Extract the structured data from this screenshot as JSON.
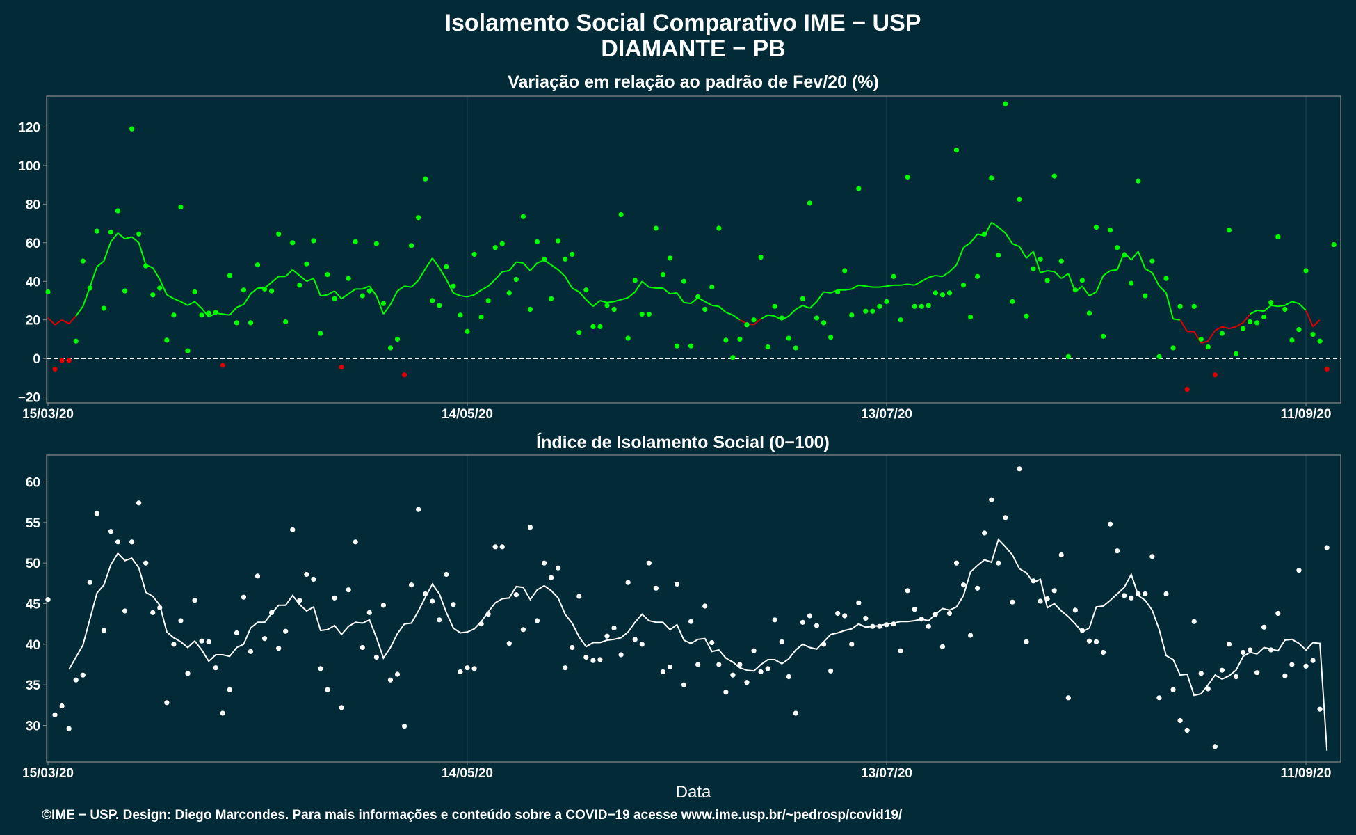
{
  "header": {
    "title_line1": "Isolamento Social Comparativo IME − USP",
    "title_line2": "DIAMANTE − PB"
  },
  "footer": {
    "text": "©IME − USP. Design: Diego Marcondes. Para mais informações e conteúdo sobre a COVID−19 acesse www.ime.usp.br/~pedrosp/covid19/"
  },
  "colors": {
    "background": "#022b37",
    "positive": "#00ff00",
    "negative": "#e00000",
    "index_series": "#ffffff",
    "frame": "#8a8a8a",
    "grid": "#1e4450"
  },
  "chart_data": [
    {
      "type": "scatter",
      "title": "Variação em relação ao padrão de Fev/20 (%)",
      "xlabel": "",
      "ylabel": "",
      "x_start": "2020-03-15",
      "x_tick_labels": [
        "15/03/20",
        "14/05/20",
        "13/07/20",
        "11/09/20"
      ],
      "x_tick_dates": [
        "2020-03-15",
        "2020-05-14",
        "2020-07-13",
        "2020-09-11"
      ],
      "y_ticks": [
        -20,
        0,
        20,
        40,
        60,
        80,
        100,
        120
      ],
      "ylim": [
        -23,
        136
      ],
      "reference_line": 0,
      "grid": true,
      "series": [
        {
          "role": "points",
          "values": [
            34.5,
            -5.5,
            -1.0,
            -1.0,
            9.0,
            50.5,
            36.5,
            66.0,
            26.0,
            65.5,
            76.5,
            35.0,
            119.0,
            64.5,
            48.0,
            33.0,
            36.5,
            9.5,
            22.5,
            78.5,
            4.0,
            34.5,
            22.5,
            23.5,
            24.0,
            -3.5,
            43.0,
            18.5,
            35.5,
            18.5,
            48.5,
            36.0,
            35.0,
            64.5,
            19.0,
            60.0,
            38.0,
            49.0,
            61.0,
            13.0,
            43.5,
            31.0,
            -4.5,
            41.5,
            60.5,
            32.5,
            35.0,
            59.5,
            28.5,
            5.5,
            10.0,
            -8.5,
            58.5,
            73.0,
            93.0,
            30.0,
            27.5,
            47.5,
            37.5,
            22.5,
            14.0,
            54.0,
            21.5,
            30.0,
            57.5,
            59.5,
            34.0,
            41.0,
            73.5,
            25.5,
            60.5,
            51.5,
            31.0,
            61.0,
            51.5,
            54.0,
            13.5,
            35.5,
            16.5,
            16.5,
            27.5,
            25.5,
            74.5,
            10.5,
            40.5,
            23.0,
            23.0,
            67.5,
            43.5,
            52.0,
            6.5,
            40.0,
            6.5,
            32.0,
            25.5,
            37.0,
            67.5,
            9.5,
            0.5,
            10.0,
            17.5,
            20.0,
            52.5,
            6.0,
            27.0,
            21.0,
            10.5,
            5.5,
            31.0,
            80.5,
            21.0,
            18.5,
            11.0,
            34.5,
            45.5,
            22.5,
            88.0,
            24.5,
            24.5,
            27.0,
            29.5,
            42.5,
            20.0,
            94.0,
            27.0,
            27.0,
            27.5,
            34.0,
            33.0,
            34.0,
            108.0,
            38.0,
            21.5,
            42.5,
            64.5,
            93.5,
            53.5,
            132.0,
            29.5,
            82.5,
            22.0,
            46.5,
            51.5,
            40.5,
            94.5,
            50.5,
            1.0,
            35.5,
            40.5,
            23.5,
            68.0,
            11.5,
            66.5,
            57.5,
            53.5,
            39.0,
            92.0,
            32.5,
            50.5,
            1.0,
            41.5,
            5.5,
            27.0,
            -16.0,
            27.0,
            10.0,
            6.0,
            -8.5,
            13.0,
            66.5,
            2.5,
            15.5,
            19.0,
            18.5,
            21.5,
            29.0,
            63.0,
            25.5,
            9.5,
            15.0,
            45.5,
            12.5,
            9.0,
            -5.5,
            59.0
          ]
        },
        {
          "role": "moving_average",
          "values": [
            21.0,
            17.5,
            20.0,
            18.0,
            22.0,
            27.0,
            37.0,
            47.5,
            50.5,
            60.5,
            65.0,
            62.0,
            63.0,
            60.0,
            48.5,
            47.0,
            41.0,
            33.0,
            31.0,
            29.5,
            27.5,
            29.5,
            26.0,
            21.5,
            23.5,
            23.0,
            22.5,
            26.5,
            28.0,
            33.5,
            36.5,
            36.5,
            39.5,
            42.5,
            42.5,
            46.0,
            43.0,
            40.0,
            41.5,
            32.5,
            33.0,
            35.0,
            31.0,
            33.5,
            36.0,
            36.0,
            37.5,
            32.5,
            23.0,
            28.0,
            35.0,
            37.5,
            37.0,
            40.5,
            46.5,
            52.0,
            47.0,
            41.0,
            34.0,
            32.5,
            32.0,
            33.0,
            35.5,
            37.5,
            41.0,
            45.0,
            45.5,
            50.0,
            49.5,
            45.5,
            49.5,
            51.0,
            48.5,
            46.0,
            42.5,
            36.5,
            34.5,
            30.5,
            27.0,
            30.0,
            29.0,
            29.5,
            30.5,
            31.5,
            34.5,
            40.0,
            37.0,
            36.5,
            36.5,
            33.5,
            34.0,
            29.0,
            28.5,
            31.5,
            29.5,
            27.5,
            27.0,
            24.0,
            22.5,
            20.0,
            18.0,
            17.5,
            20.5,
            22.5,
            22.0,
            20.0,
            22.0,
            25.5,
            27.5,
            26.0,
            29.5,
            34.5,
            34.0,
            35.5,
            35.5,
            36.0,
            38.0,
            37.5,
            37.0,
            37.0,
            37.5,
            38.0,
            38.0,
            38.5,
            38.0,
            40.0,
            42.0,
            43.0,
            42.5,
            45.0,
            48.5,
            57.5,
            60.0,
            64.5,
            63.5,
            70.5,
            68.0,
            65.0,
            59.5,
            58.0,
            52.0,
            55.5,
            44.5,
            45.5,
            45.0,
            41.5,
            44.0,
            34.5,
            37.5,
            32.5,
            34.5,
            43.0,
            45.5,
            46.0,
            55.0,
            51.0,
            55.5,
            46.5,
            44.5,
            37.5,
            34.0,
            20.5,
            20.0,
            14.0,
            14.0,
            8.0,
            9.0,
            14.5,
            16.5,
            15.5,
            16.5,
            18.5,
            23.0,
            25.0,
            24.5,
            27.5,
            27.0,
            27.5,
            29.5,
            28.5,
            25.0,
            16.5,
            20.0
          ]
        }
      ]
    },
    {
      "type": "scatter",
      "title": "Índice de Isolamento Social (0−100)",
      "xlabel": "Data",
      "ylabel": "",
      "x_start": "2020-03-15",
      "x_tick_labels": [
        "15/03/20",
        "14/05/20",
        "13/07/20",
        "11/09/20"
      ],
      "x_tick_dates": [
        "2020-03-15",
        "2020-05-14",
        "2020-07-13",
        "2020-09-11"
      ],
      "y_ticks": [
        30,
        35,
        40,
        45,
        50,
        55,
        60
      ],
      "ylim": [
        25.5,
        63.3
      ],
      "grid": true,
      "series": [
        {
          "role": "points",
          "values": [
            45.5,
            31.3,
            32.4,
            29.6,
            35.6,
            36.2,
            47.6,
            56.1,
            41.7,
            53.9,
            52.6,
            44.1,
            52.6,
            57.4,
            50.0,
            43.9,
            44.5,
            32.8,
            40.0,
            42.9,
            36.4,
            45.4,
            40.4,
            40.3,
            37.1,
            31.5,
            34.4,
            41.4,
            45.8,
            39.1,
            48.4,
            40.7,
            43.9,
            39.5,
            41.6,
            54.1,
            45.4,
            48.6,
            48.0,
            37.0,
            34.4,
            45.7,
            32.2,
            46.7,
            52.6,
            39.6,
            43.9,
            38.4,
            44.8,
            35.6,
            36.3,
            29.9,
            47.3,
            56.6,
            46.2,
            45.3,
            43.0,
            48.6,
            44.9,
            36.6,
            37.1,
            37.0,
            42.5,
            43.7,
            52.0,
            52.0,
            40.1,
            46.1,
            41.8,
            54.4,
            42.9,
            50.0,
            48.2,
            49.4,
            37.1,
            39.6,
            45.9,
            38.4,
            38.0,
            38.1,
            41.0,
            42.0,
            38.7,
            47.6,
            40.6,
            40.0,
            50.0,
            46.9,
            36.6,
            37.2,
            47.4,
            35.0,
            42.8,
            37.5,
            44.7,
            40.2,
            37.5,
            34.1,
            36.2,
            37.5,
            35.3,
            39.2,
            36.6,
            37.0,
            43.0,
            40.3,
            36.0,
            31.5,
            42.7,
            43.5,
            42.3,
            40.0,
            36.7,
            43.8,
            43.5,
            40.0,
            45.1,
            43.2,
            42.2,
            42.2,
            42.4,
            42.5,
            39.2,
            46.6,
            44.3,
            43.1,
            42.2,
            43.7,
            39.7,
            43.8,
            50.0,
            47.3,
            41.1,
            46.9,
            53.7,
            57.8,
            50.0,
            55.6,
            45.2,
            61.6,
            40.3,
            47.8,
            45.3,
            45.6,
            46.6,
            51.0,
            33.4,
            44.2,
            41.7,
            40.4,
            40.3,
            39.0,
            54.8,
            51.5,
            46.0,
            45.7,
            46.2,
            46.2,
            50.8,
            33.4,
            46.2,
            34.4,
            30.6,
            29.4,
            42.8,
            36.4,
            34.5,
            27.4,
            36.8,
            40.0,
            36.0,
            39.0,
            39.3,
            36.5,
            42.1,
            39.3,
            43.8,
            36.1,
            37.5,
            49.1,
            37.3,
            38.0,
            32.0,
            51.9
          ]
        },
        {
          "role": "moving_average",
          "values": [
            null,
            null,
            null,
            36.9,
            38.4,
            39.9,
            43.1,
            46.3,
            47.3,
            49.8,
            51.2,
            50.3,
            50.6,
            49.4,
            46.4,
            45.9,
            44.8,
            41.5,
            40.8,
            40.3,
            39.6,
            40.4,
            39.3,
            37.9,
            38.7,
            38.7,
            38.5,
            39.6,
            40.0,
            42.0,
            42.7,
            42.7,
            43.8,
            44.8,
            44.8,
            46.0,
            44.9,
            44.1,
            44.6,
            41.7,
            41.8,
            42.3,
            41.2,
            42.2,
            42.7,
            42.6,
            43.0,
            40.8,
            38.3,
            39.6,
            41.3,
            42.5,
            42.6,
            44.1,
            45.8,
            47.4,
            46.2,
            43.9,
            42.0,
            41.4,
            41.5,
            41.9,
            42.8,
            44.0,
            45.1,
            45.6,
            45.7,
            47.1,
            47.0,
            45.5,
            46.7,
            47.2,
            46.6,
            45.7,
            43.7,
            42.6,
            40.9,
            39.7,
            40.2,
            40.2,
            40.5,
            40.6,
            40.8,
            41.5,
            42.7,
            43.7,
            42.9,
            42.7,
            42.7,
            41.8,
            42.4,
            40.5,
            40.1,
            40.6,
            40.7,
            39.1,
            39.3,
            38.3,
            37.8,
            37.1,
            36.8,
            36.7,
            37.5,
            38.1,
            38.1,
            37.6,
            38.2,
            39.3,
            40.0,
            39.6,
            39.4,
            40.3,
            41.2,
            41.4,
            41.7,
            41.9,
            42.5,
            42.1,
            42.2,
            42.3,
            42.5,
            42.6,
            42.8,
            42.8,
            42.9,
            43.1,
            42.9,
            43.7,
            44.4,
            44.2,
            44.6,
            46.0,
            48.9,
            49.7,
            50.4,
            50.1,
            52.9,
            52.0,
            51.0,
            49.3,
            48.8,
            47.6,
            48.0,
            44.5,
            45.0,
            44.1,
            43.4,
            42.5,
            41.5,
            42.0,
            44.6,
            44.7,
            45.4,
            46.2,
            47.0,
            48.6,
            46.0,
            45.4,
            44.2,
            41.8,
            38.6,
            38.1,
            36.2,
            36.3,
            33.7,
            33.9,
            35.0,
            36.2,
            35.7,
            36.1,
            36.8,
            38.5,
            39.0,
            38.8,
            39.6,
            39.4,
            39.2,
            40.5,
            40.6,
            40.1,
            39.3,
            40.2,
            40.1,
            26.9
          ]
        }
      ]
    }
  ]
}
